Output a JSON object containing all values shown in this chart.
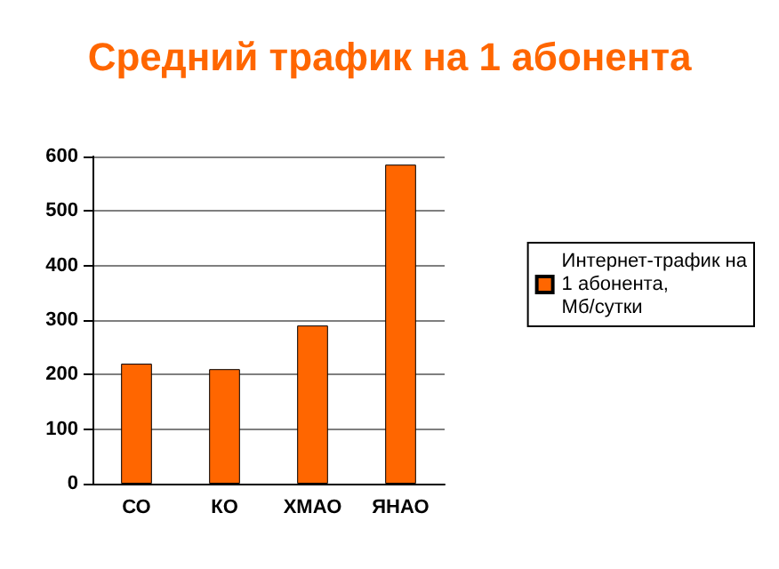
{
  "chart_data": {
    "type": "bar",
    "title": "Средний трафик на 1 абонента",
    "categories": [
      "СО",
      "КО",
      "ХМАО",
      "ЯНАО"
    ],
    "series": [
      {
        "name": "Интернет-трафик на 1 абонента, Мб/сутки",
        "color": "#ff6600",
        "values": [
          220,
          210,
          290,
          585
        ]
      }
    ],
    "ylim": [
      0,
      600
    ],
    "yticks": [
      0,
      100,
      200,
      300,
      400,
      500,
      600
    ],
    "grid": "y",
    "legend": "right"
  }
}
